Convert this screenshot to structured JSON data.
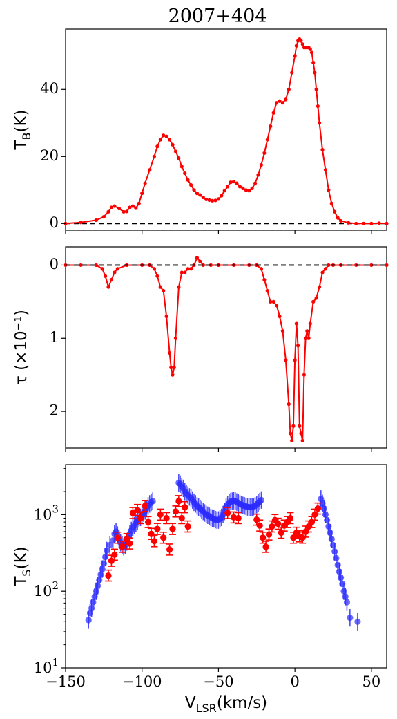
{
  "title": "2007+404",
  "chart_data": [
    {
      "type": "line",
      "panel": "top",
      "ylabel_main": "T",
      "ylabel_sub": "B",
      "ylabel_tail": "(K)",
      "xlim": [
        -150,
        60
      ],
      "ylim": [
        -2,
        58
      ],
      "yticks": [
        0,
        20,
        40
      ],
      "ytick_labels": [
        "0",
        "20",
        "40"
      ],
      "reference_line": 0,
      "series_color": "#ff0000",
      "x": [
        -150,
        -140,
        -130,
        -125,
        -122,
        -120,
        -118,
        -115,
        -112,
        -110,
        -108,
        -106,
        -104,
        -102,
        -100,
        -98,
        -95,
        -92,
        -90,
        -88,
        -86,
        -84,
        -82,
        -80,
        -78,
        -76,
        -74,
        -72,
        -70,
        -68,
        -66,
        -64,
        -62,
        -60,
        -58,
        -56,
        -54,
        -52,
        -50,
        -48,
        -46,
        -44,
        -42,
        -40,
        -38,
        -36,
        -34,
        -32,
        -30,
        -28,
        -26,
        -24,
        -22,
        -20,
        -18,
        -16,
        -14,
        -12,
        -10,
        -8,
        -6,
        -4,
        -2,
        0,
        1,
        2,
        3,
        4,
        5,
        6,
        7,
        8,
        9,
        10,
        11,
        12,
        13,
        14,
        15,
        16,
        18,
        20,
        22,
        24,
        26,
        28,
        30,
        35,
        40,
        45,
        50,
        55,
        60
      ],
      "y": [
        0,
        0.3,
        1,
        2,
        3.5,
        4.8,
        5.2,
        4.5,
        3.5,
        3.6,
        4.8,
        5.2,
        4.6,
        6,
        9,
        12,
        16,
        20,
        23,
        25,
        26.3,
        26,
        25,
        23.5,
        21.5,
        19.5,
        17,
        15,
        13,
        11.5,
        10,
        9,
        8.5,
        7.8,
        7.2,
        7,
        6.8,
        6.9,
        7.3,
        8.3,
        9.8,
        11,
        12.3,
        12.5,
        12,
        11,
        10.5,
        10,
        9.8,
        10.5,
        12,
        14.5,
        17.5,
        21,
        25,
        29,
        33,
        36,
        36.5,
        36,
        37,
        40,
        45,
        50,
        53,
        54.5,
        55,
        54.5,
        53.5,
        52.5,
        52.5,
        52.5,
        52.5,
        52,
        51,
        48,
        45,
        40,
        35,
        30,
        22,
        16,
        10,
        6,
        3.5,
        1.7,
        0.8,
        0.2,
        0,
        0,
        0,
        0.1,
        0
      ]
    },
    {
      "type": "line",
      "panel": "middle",
      "ylabel": "τ (×10⁻¹)",
      "xlim": [
        -150,
        60
      ],
      "ylim": [
        2.5,
        -0.25
      ],
      "yticks": [
        0,
        1,
        2
      ],
      "ytick_labels": [
        "0",
        "1",
        "2"
      ],
      "reference_line": 0,
      "series_color": "#ff0000",
      "x": [
        -150,
        -140,
        -130,
        -126,
        -124,
        -122,
        -120,
        -118,
        -116,
        -110,
        -100,
        -95,
        -92,
        -90,
        -88,
        -86,
        -84,
        -82,
        -81,
        -80,
        -79,
        -78,
        -76,
        -74,
        -72,
        -70,
        -68,
        -66,
        -64,
        -62,
        -60,
        -55,
        -50,
        -40,
        -30,
        -25,
        -22,
        -20,
        -18,
        -16,
        -14,
        -12,
        -10,
        -8,
        -6,
        -4,
        -3,
        -2,
        -1,
        0,
        1,
        2,
        3,
        4,
        5,
        6,
        7,
        8,
        9,
        10,
        12,
        14,
        16,
        18,
        20,
        22,
        25,
        30,
        40,
        50,
        60
      ],
      "y": [
        0,
        0,
        0,
        0.05,
        0.15,
        0.3,
        0.2,
        0.1,
        0.05,
        0,
        0,
        0,
        0.05,
        0.15,
        0.3,
        0.35,
        0.7,
        1.2,
        1.4,
        1.5,
        1.4,
        1.0,
        0.3,
        0.1,
        0.1,
        0.05,
        0.05,
        0,
        -0.1,
        -0.05,
        0,
        0,
        0,
        0,
        0,
        0,
        0.05,
        0.2,
        0.35,
        0.5,
        0.5,
        0.55,
        0.7,
        0.9,
        1.3,
        1.9,
        2.3,
        2.4,
        2.2,
        1.3,
        0.8,
        1.1,
        2.2,
        2.3,
        2.4,
        1.5,
        1.0,
        0.9,
        1.0,
        0.8,
        0.5,
        0.45,
        0.3,
        0.1,
        0.05,
        0,
        0,
        0,
        0,
        0,
        0
      ]
    },
    {
      "type": "scatter",
      "panel": "bottom",
      "ylabel_main": "T",
      "ylabel_sub": "S",
      "ylabel_tail": "(K)",
      "xlabel_main": "V",
      "xlabel_sub": "LSR",
      "xlabel_tail": "(km/s)",
      "y_scale": "log",
      "xlim": [
        -150,
        60
      ],
      "ylim": [
        10,
        4500
      ],
      "xticks": [
        -150,
        -100,
        -50,
        0,
        50
      ],
      "xtick_labels": [
        "−150",
        "−100",
        "−50",
        "0",
        "50"
      ],
      "ytick_base": "10",
      "ytick_exponents": [
        "1",
        "2",
        "3"
      ],
      "series": [
        {
          "color": "#2b2bff",
          "x": [
            -135,
            -134,
            -133,
            -132,
            -131,
            -130,
            -129,
            -128,
            -127,
            -126,
            -125,
            -124,
            -123,
            -121,
            -119,
            -118,
            -117,
            -116,
            -115,
            -114,
            -113,
            -112,
            -111,
            -110,
            -109,
            -108,
            -107,
            -106,
            -105,
            -104,
            -103,
            -102,
            -101,
            -100,
            -99,
            -98,
            -97,
            -96,
            -95,
            -94,
            -93,
            -76,
            -75,
            -74,
            -73,
            -72,
            -71,
            -70,
            -69,
            -68,
            -67,
            -66,
            -65,
            -64,
            -63,
            -62,
            -61,
            -60,
            -59,
            -58,
            -57,
            -56,
            -55,
            -54,
            -53,
            -52,
            -51,
            -50,
            -49,
            -48,
            -47,
            -46,
            -45,
            -44,
            -43,
            -42,
            -41,
            -40,
            -39,
            -38,
            -37,
            -36,
            -35,
            -34,
            -33,
            -32,
            -31,
            -30,
            -29,
            -28,
            -27,
            -26,
            -25,
            -24,
            -23,
            -22,
            17,
            18,
            19,
            20,
            21,
            22,
            23,
            24,
            25,
            26,
            27,
            28,
            29,
            30,
            31,
            32,
            33,
            34,
            36,
            41
          ],
          "y": [
            42,
            52,
            60,
            72,
            85,
            100,
            118,
            140,
            165,
            195,
            230,
            280,
            340,
            400,
            460,
            560,
            600,
            540,
            480,
            430,
            400,
            380,
            400,
            440,
            500,
            560,
            620,
            680,
            720,
            780,
            820,
            880,
            920,
            980,
            1050,
            1120,
            1200,
            1300,
            1380,
            1450,
            1500,
            2600,
            2500,
            2300,
            2200,
            2000,
            1900,
            1800,
            1700,
            1650,
            1550,
            1450,
            1380,
            1300,
            1250,
            1200,
            1150,
            1100,
            1050,
            1000,
            980,
            950,
            920,
            900,
            880,
            860,
            850,
            850,
            880,
            920,
            1000,
            1100,
            1250,
            1350,
            1420,
            1480,
            1500,
            1520,
            1500,
            1460,
            1420,
            1380,
            1350,
            1320,
            1300,
            1280,
            1260,
            1250,
            1250,
            1250,
            1270,
            1300,
            1350,
            1420,
            1480,
            1550,
            1600,
            1400,
            1200,
            1000,
            850,
            700,
            580,
            480,
            400,
            330,
            270,
            220,
            180,
            150,
            125,
            100,
            85,
            72,
            45,
            40
          ]
        },
        {
          "color": "#ff0000",
          "x": [
            -122,
            -120,
            -118,
            -116,
            -113,
            -110,
            -108,
            -106,
            -103,
            -101,
            -98,
            -96,
            -94,
            -92,
            -90,
            -88,
            -86,
            -84,
            -82,
            -80,
            -78,
            -76,
            -74,
            -72,
            -70,
            -44,
            -40,
            -37,
            -25,
            -23,
            -21,
            -19,
            -17,
            -15,
            -13,
            -11,
            -9,
            -7,
            -5,
            -3,
            -1,
            1,
            3,
            5,
            7,
            9,
            11,
            13,
            15
          ],
          "y": [
            160,
            250,
            300,
            500,
            380,
            480,
            420,
            1050,
            1150,
            900,
            1300,
            800,
            560,
            450,
            650,
            1000,
            500,
            900,
            350,
            650,
            1100,
            1500,
            900,
            1250,
            700,
            1050,
            920,
            900,
            860,
            720,
            500,
            380,
            550,
            700,
            850,
            760,
            580,
            720,
            800,
            900,
            500,
            580,
            520,
            500,
            600,
            700,
            800,
            1000,
            1200
          ]
        }
      ]
    }
  ]
}
